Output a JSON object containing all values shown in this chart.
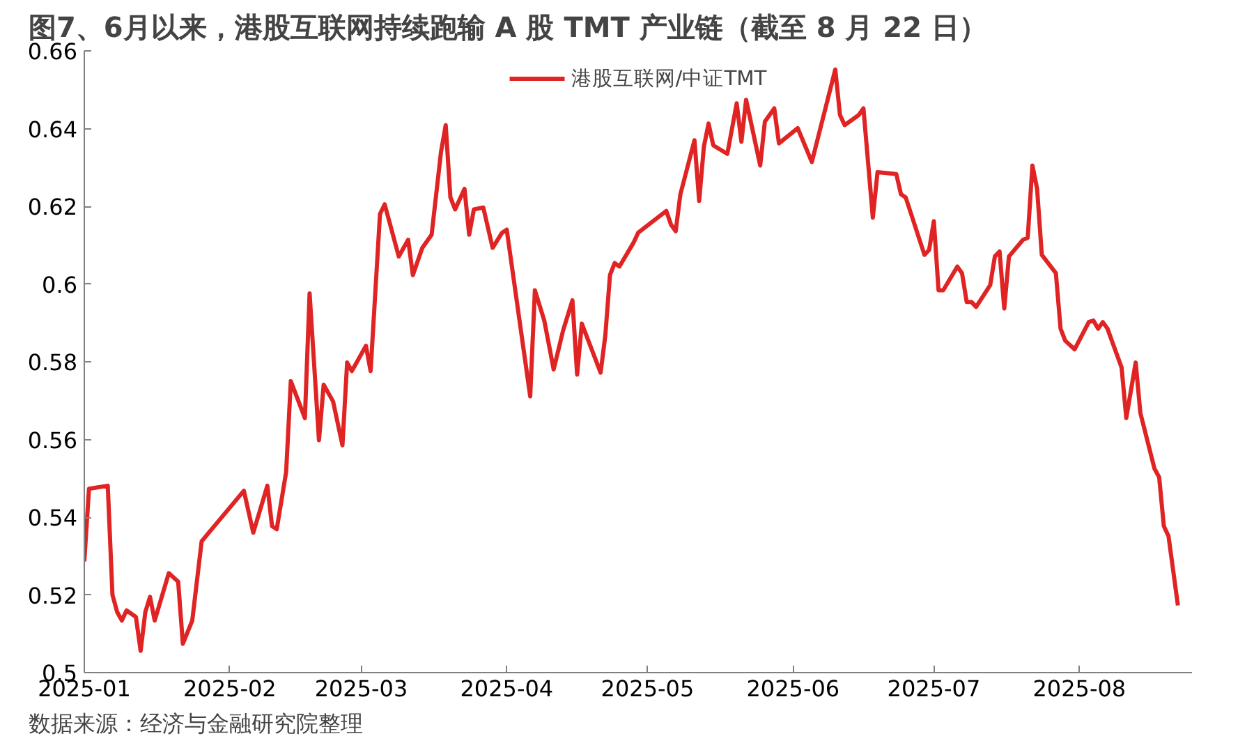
{
  "chart_data": {
    "type": "line",
    "title": "图7、6月以来，港股互联网持续跑输 A 股 TMT 产业链（截至 8 月 22 日）",
    "annotations": [
      "数据来源：经济与金融研究院整理"
    ],
    "x": [
      "2025-01-01",
      "2025-01-02",
      "2025-01-06",
      "2025-01-07",
      "2025-01-08",
      "2025-01-09",
      "2025-01-10",
      "2025-01-12",
      "2025-01-13",
      "2025-01-14",
      "2025-01-15",
      "2025-01-16",
      "2025-01-19",
      "2025-01-21",
      "2025-01-22",
      "2025-01-24",
      "2025-01-26",
      "2025-02-04",
      "2025-02-06",
      "2025-02-09",
      "2025-02-10",
      "2025-02-11",
      "2025-02-13",
      "2025-02-14",
      "2025-02-17",
      "2025-02-18",
      "2025-02-20",
      "2025-02-21",
      "2025-02-23",
      "2025-02-25",
      "2025-02-26",
      "2025-02-27",
      "2025-03-02",
      "2025-03-03",
      "2025-03-05",
      "2025-03-06",
      "2025-03-09",
      "2025-03-11",
      "2025-03-12",
      "2025-03-14",
      "2025-03-16",
      "2025-03-18",
      "2025-03-19",
      "2025-03-20",
      "2025-03-21",
      "2025-03-23",
      "2025-03-24",
      "2025-03-25",
      "2025-03-27",
      "2025-03-29",
      "2025-03-31",
      "2025-04-01",
      "2025-04-06",
      "2025-04-07",
      "2025-04-09",
      "2025-04-11",
      "2025-04-13",
      "2025-04-15",
      "2025-04-16",
      "2025-04-17",
      "2025-04-21",
      "2025-04-22",
      "2025-04-23",
      "2025-04-24",
      "2025-04-25",
      "2025-04-28",
      "2025-04-29",
      "2025-05-05",
      "2025-05-06",
      "2025-05-07",
      "2025-05-08",
      "2025-05-11",
      "2025-05-12",
      "2025-05-13",
      "2025-05-14",
      "2025-05-15",
      "2025-05-18",
      "2025-05-20",
      "2025-05-21",
      "2025-05-22",
      "2025-05-25",
      "2025-05-26",
      "2025-05-28",
      "2025-05-29",
      "2025-06-02",
      "2025-06-05",
      "2025-06-10",
      "2025-06-11",
      "2025-06-12",
      "2025-06-15",
      "2025-06-16",
      "2025-06-18",
      "2025-06-19",
      "2025-06-23",
      "2025-06-24",
      "2025-06-25",
      "2025-06-29",
      "2025-06-30",
      "2025-07-01",
      "2025-07-02",
      "2025-07-03",
      "2025-07-06",
      "2025-07-07",
      "2025-07-08",
      "2025-07-09",
      "2025-07-10",
      "2025-07-13",
      "2025-07-14",
      "2025-07-15",
      "2025-07-16",
      "2025-07-17",
      "2025-07-20",
      "2025-07-21",
      "2025-07-22",
      "2025-07-23",
      "2025-07-24",
      "2025-07-27",
      "2025-07-28",
      "2025-07-29",
      "2025-07-31",
      "2025-08-03",
      "2025-08-04",
      "2025-08-05",
      "2025-08-06",
      "2025-08-07",
      "2025-08-10",
      "2025-08-11",
      "2025-08-13",
      "2025-08-14",
      "2025-08-17",
      "2025-08-18",
      "2025-08-19",
      "2025-08-20",
      "2025-08-22"
    ],
    "series": [
      {
        "name": "港股互联网/中证TMT",
        "color": "#e02424",
        "values": [
          0.5286,
          0.5473,
          0.5481,
          0.52,
          0.5156,
          0.5134,
          0.516,
          0.5143,
          0.5056,
          0.5156,
          0.5195,
          0.5134,
          0.5256,
          0.5234,
          0.5074,
          0.5134,
          0.5338,
          0.5468,
          0.536,
          0.5481,
          0.5377,
          0.5369,
          0.5516,
          0.575,
          0.5655,
          0.5976,
          0.5598,
          0.5741,
          0.5698,
          0.5585,
          0.5798,
          0.5776,
          0.5841,
          0.5776,
          0.618,
          0.6205,
          0.6071,
          0.6114,
          0.6023,
          0.6093,
          0.6127,
          0.634,
          0.6409,
          0.6223,
          0.6192,
          0.6245,
          0.6127,
          0.6192,
          0.6197,
          0.6093,
          0.6132,
          0.614,
          0.5711,
          0.5984,
          0.5906,
          0.578,
          0.588,
          0.5958,
          0.5767,
          0.5898,
          0.5772,
          0.5867,
          0.6023,
          0.6054,
          0.6045,
          0.6106,
          0.6132,
          0.6188,
          0.6153,
          0.6136,
          0.6231,
          0.637,
          0.6214,
          0.6353,
          0.6413,
          0.6357,
          0.6335,
          0.6465,
          0.6366,
          0.6474,
          0.6305,
          0.6418,
          0.6452,
          0.6362,
          0.6401,
          0.6314,
          0.6552,
          0.6435,
          0.6409,
          0.6435,
          0.6452,
          0.6171,
          0.6288,
          0.6283,
          0.6231,
          0.6223,
          0.6075,
          0.6088,
          0.6162,
          0.5984,
          0.5984,
          0.6045,
          0.6028,
          0.5954,
          0.5954,
          0.5941,
          0.5997,
          0.6071,
          0.6084,
          0.5937,
          0.6071,
          0.6114,
          0.6119,
          0.6305,
          0.6245,
          0.6075,
          0.6028,
          0.5885,
          0.5854,
          0.5832,
          0.5902,
          0.5906,
          0.5885,
          0.5902,
          0.5885,
          0.5785,
          0.5655,
          0.5798,
          0.5668,
          0.5525,
          0.5503,
          0.5377,
          0.5351,
          0.5173
        ]
      }
    ],
    "xlim": [
      "2025-01-01",
      "2025-08-25"
    ],
    "xticks": [
      {
        "value": "2025-01-01",
        "label": "2025-01"
      },
      {
        "value": "2025-02-01",
        "label": "2025-02"
      },
      {
        "value": "2025-03-01",
        "label": "2025-03"
      },
      {
        "value": "2025-04-01",
        "label": "2025-04"
      },
      {
        "value": "2025-05-01",
        "label": "2025-05"
      },
      {
        "value": "2025-06-01",
        "label": "2025-06"
      },
      {
        "value": "2025-07-01",
        "label": "2025-07"
      },
      {
        "value": "2025-08-01",
        "label": "2025-08"
      }
    ],
    "ylim": [
      0.5,
      0.66
    ],
    "yticks": [
      0.5,
      0.52,
      0.54,
      0.56,
      0.58,
      0.6,
      0.62,
      0.64,
      0.66
    ],
    "legend": "top",
    "grid": false,
    "line_style": "solid",
    "marker": "none"
  }
}
